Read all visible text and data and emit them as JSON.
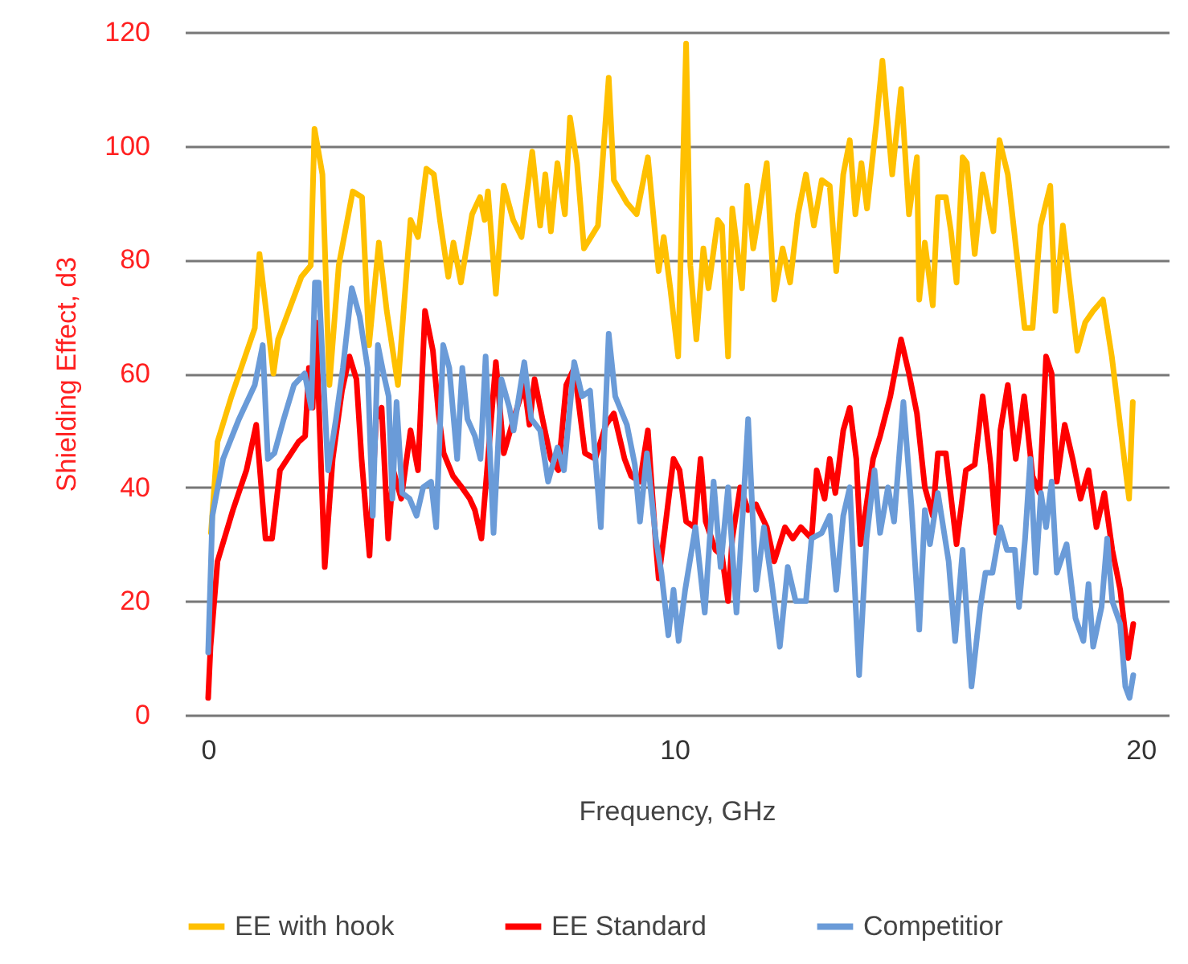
{
  "chart_data": {
    "type": "line",
    "xlabel": "Frequency, GHz",
    "ylabel": "Shielding Effect, d3",
    "xlim": [
      -0.5,
      20.6
    ],
    "xticks": [
      0,
      10,
      20
    ],
    "ylim": [
      0,
      120
    ],
    "yticks": [
      0,
      20,
      40,
      60,
      80,
      100,
      120
    ],
    "grid": "y",
    "legend": "bottom",
    "line_style": "solid",
    "series": [
      {
        "name": "EE with hook",
        "color": "#ffc000",
        "x": [
          0.06,
          0.2,
          0.5,
          1.0,
          1.1,
          1.4,
          1.5,
          2.0,
          2.2,
          2.28,
          2.45,
          2.6,
          2.8,
          3.1,
          3.3,
          3.45,
          3.66,
          3.83,
          4.07,
          4.34,
          4.5,
          4.68,
          4.84,
          4.97,
          5.15,
          5.26,
          5.42,
          5.66,
          5.83,
          5.93,
          6.0,
          6.17,
          6.34,
          6.54,
          6.72,
          6.95,
          7.12,
          7.23,
          7.35,
          7.49,
          7.65,
          7.76,
          7.91,
          8.06,
          8.36,
          8.59,
          8.7,
          8.98,
          9.19,
          9.43,
          9.66,
          9.77,
          9.91,
          10.08,
          10.25,
          10.34,
          10.47,
          10.62,
          10.73,
          10.93,
          11.02,
          11.15,
          11.24,
          11.45,
          11.56,
          11.69,
          11.81,
          11.98,
          12.14,
          12.32,
          12.48,
          12.65,
          12.82,
          12.99,
          13.16,
          13.33,
          13.47,
          13.62,
          13.76,
          13.88,
          14.01,
          14.13,
          14.33,
          14.46,
          14.67,
          14.86,
          15.03,
          15.2,
          15.25,
          15.37,
          15.54,
          15.65,
          15.82,
          15.93,
          16.05,
          16.18,
          16.27,
          16.44,
          16.61,
          16.84,
          16.97,
          17.15,
          17.34,
          17.51,
          17.68,
          17.85,
          18.06,
          18.17,
          18.33,
          18.47,
          18.64,
          18.81,
          18.98,
          19.19,
          19.38,
          19.75,
          19.83
        ],
        "values": [
          32,
          48,
          56,
          68,
          81,
          60,
          66,
          77,
          79,
          103,
          95,
          58,
          79,
          92,
          91,
          65,
          83,
          71,
          58,
          87,
          84,
          96,
          95,
          87,
          77,
          83,
          76,
          88,
          91,
          87,
          92,
          74,
          93,
          87,
          84,
          99,
          86,
          95,
          85,
          97,
          88,
          105,
          97,
          82,
          86,
          112,
          94,
          90,
          88,
          98,
          78,
          84,
          75,
          63,
          118,
          79,
          66,
          82,
          75,
          87,
          86,
          63,
          89,
          75,
          93,
          82,
          88,
          97,
          73,
          82,
          76,
          88,
          95,
          86,
          94,
          93,
          78,
          95,
          101,
          88,
          97,
          89,
          104,
          115,
          95,
          110,
          88,
          98,
          73,
          83,
          72,
          91,
          91,
          85,
          76,
          98,
          97,
          81,
          95,
          85,
          101,
          95,
          81,
          68,
          68,
          86,
          93,
          71,
          86,
          76,
          64,
          69,
          71,
          73,
          63,
          38,
          55
        ]
      },
      {
        "name": "EE Standard",
        "color": "#ff0000",
        "x": [
          0.0,
          0.05,
          0.2,
          0.53,
          0.82,
          1.03,
          1.09,
          1.23,
          1.37,
          1.54,
          1.94,
          2.08,
          2.16,
          2.24,
          2.31,
          2.5,
          2.67,
          2.87,
          3.03,
          3.18,
          3.29,
          3.46,
          3.6,
          3.72,
          3.86,
          3.97,
          4.14,
          4.34,
          4.5,
          4.65,
          4.82,
          4.94,
          5.05,
          5.25,
          5.44,
          5.61,
          5.72,
          5.86,
          6.0,
          6.17,
          6.34,
          6.55,
          6.78,
          6.89,
          7.0,
          7.17,
          7.35,
          7.51,
          7.68,
          7.85,
          8.08,
          8.3,
          8.53,
          8.7,
          8.93,
          9.07,
          9.26,
          9.43,
          9.6,
          9.66,
          9.8,
          9.98,
          10.11,
          10.25,
          10.43,
          10.56,
          10.67,
          10.88,
          11.02,
          11.15,
          11.24,
          11.41,
          11.58,
          11.75,
          11.98,
          12.14,
          12.37,
          12.54,
          12.71,
          12.94,
          13.05,
          13.22,
          13.33,
          13.45,
          13.62,
          13.76,
          13.9,
          13.99,
          14.12,
          14.26,
          14.41,
          14.63,
          14.86,
          15.03,
          15.2,
          15.37,
          15.54,
          15.65,
          15.82,
          16.05,
          16.25,
          16.44,
          16.61,
          16.78,
          16.9,
          16.99,
          17.15,
          17.32,
          17.5,
          17.68,
          17.83,
          17.97,
          18.09,
          18.2,
          18.37,
          18.54,
          18.71,
          18.88,
          19.05,
          19.22,
          19.39,
          19.56,
          19.73,
          19.84
        ],
        "values": [
          3,
          12,
          27,
          36,
          43,
          51,
          45,
          31,
          31,
          43,
          48,
          49,
          61,
          54,
          69,
          26,
          45,
          57,
          63,
          59,
          45,
          28,
          52,
          54,
          31,
          43,
          38,
          50,
          43,
          71,
          64,
          53,
          46,
          42,
          40,
          38,
          36,
          31,
          45,
          62,
          46,
          52,
          58,
          51,
          59,
          52,
          45,
          43,
          58,
          61,
          46,
          45,
          51,
          53,
          45,
          42,
          41,
          50,
          30,
          24,
          33,
          45,
          43,
          34,
          33,
          45,
          34,
          29,
          28,
          20,
          31,
          40,
          36,
          37,
          33,
          27,
          33,
          31,
          33,
          31,
          43,
          38,
          45,
          39,
          50,
          54,
          45,
          30,
          37,
          45,
          49,
          56,
          66,
          60,
          53,
          40,
          35,
          46,
          46,
          30,
          43,
          44,
          56,
          44,
          32,
          50,
          58,
          45,
          56,
          42,
          39,
          63,
          60,
          41,
          51,
          45,
          38,
          43,
          33,
          39,
          29,
          22,
          10,
          16
        ]
      },
      {
        "name": "Competitior",
        "color": "#6a9bd8",
        "x": [
          0.0,
          0.09,
          0.32,
          0.66,
          1.0,
          1.17,
          1.28,
          1.42,
          1.62,
          1.84,
          2.07,
          2.21,
          2.29,
          2.37,
          2.57,
          2.74,
          2.89,
          3.08,
          3.25,
          3.42,
          3.53,
          3.64,
          3.76,
          3.87,
          3.95,
          4.04,
          4.16,
          4.32,
          4.47,
          4.61,
          4.78,
          4.89,
          5.04,
          5.17,
          5.34,
          5.45,
          5.56,
          5.72,
          5.84,
          5.95,
          6.12,
          6.29,
          6.46,
          6.55,
          6.78,
          6.93,
          7.12,
          7.29,
          7.49,
          7.63,
          7.85,
          8.02,
          8.19,
          8.42,
          8.59,
          8.73,
          8.98,
          9.15,
          9.26,
          9.41,
          9.6,
          9.72,
          9.87,
          9.98,
          10.09,
          10.23,
          10.45,
          10.65,
          10.84,
          10.99,
          11.15,
          11.33,
          11.47,
          11.58,
          11.75,
          11.92,
          12.09,
          12.26,
          12.43,
          12.6,
          12.82,
          12.94,
          13.16,
          13.33,
          13.47,
          13.62,
          13.76,
          13.96,
          14.12,
          14.29,
          14.41,
          14.58,
          14.71,
          14.91,
          15.08,
          15.25,
          15.37,
          15.48,
          15.65,
          15.88,
          16.02,
          16.18,
          16.37,
          16.56,
          16.67,
          16.82,
          16.99,
          17.13,
          17.3,
          17.39,
          17.52,
          17.63,
          17.75,
          17.86,
          17.97,
          18.09,
          18.2,
          18.41,
          18.6,
          18.77,
          18.88,
          18.98,
          19.16,
          19.28,
          19.39,
          19.56,
          19.67,
          19.76,
          19.84
        ],
        "values": [
          11,
          35,
          45,
          52,
          58,
          65,
          45,
          46,
          52,
          58,
          60,
          54,
          76,
          76,
          43,
          52,
          61,
          75,
          70,
          61,
          35,
          65,
          60,
          56,
          38,
          55,
          39,
          38,
          35,
          40,
          41,
          33,
          65,
          61,
          45,
          61,
          52,
          49,
          45,
          63,
          32,
          59,
          54,
          50,
          62,
          52,
          50,
          41,
          47,
          43,
          62,
          56,
          57,
          33,
          67,
          56,
          51,
          44,
          34,
          46,
          31,
          25,
          14,
          22,
          13,
          22,
          33,
          18,
          41,
          26,
          40,
          18,
          36,
          52,
          22,
          33,
          23,
          12,
          26,
          20,
          20,
          31,
          32,
          35,
          22,
          35,
          40,
          7,
          31,
          43,
          32,
          40,
          34,
          55,
          37,
          15,
          36,
          30,
          39,
          27,
          13,
          29,
          5,
          19,
          25,
          25,
          33,
          29,
          29,
          19,
          31,
          45,
          25,
          39,
          33,
          41,
          25,
          30,
          17,
          13,
          23,
          12,
          19,
          31,
          20,
          16,
          5,
          3,
          7
        ]
      }
    ]
  }
}
